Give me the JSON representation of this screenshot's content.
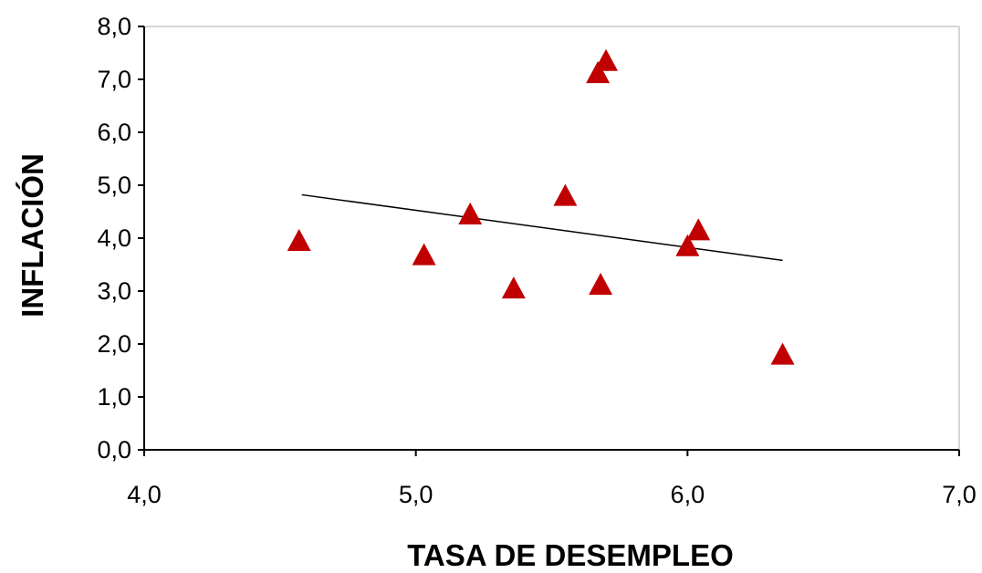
{
  "chart_data": {
    "type": "scatter",
    "title": "",
    "xlabel": "TASA DE DESEMPLEO",
    "ylabel": "INFLACIÓN",
    "xlim": [
      4.0,
      7.0
    ],
    "ylim": [
      0.0,
      8.0
    ],
    "x_ticks": [
      "4,0",
      "5,0",
      "6,0",
      "7,0"
    ],
    "y_ticks": [
      "0,0",
      "1,0",
      "2,0",
      "3,0",
      "4,0",
      "5,0",
      "6,0",
      "7,0",
      "8,0"
    ],
    "grid": false,
    "marker": "triangle",
    "marker_color": "#c00000",
    "points": [
      {
        "x": 4.57,
        "y": 3.95
      },
      {
        "x": 5.03,
        "y": 3.68
      },
      {
        "x": 5.2,
        "y": 4.45
      },
      {
        "x": 5.36,
        "y": 3.05
      },
      {
        "x": 5.55,
        "y": 4.8
      },
      {
        "x": 5.67,
        "y": 7.12
      },
      {
        "x": 5.7,
        "y": 7.35
      },
      {
        "x": 5.68,
        "y": 3.12
      },
      {
        "x": 6.0,
        "y": 3.85
      },
      {
        "x": 6.04,
        "y": 4.15
      },
      {
        "x": 6.35,
        "y": 1.8
      }
    ],
    "trendline": {
      "x": [
        4.58,
        6.35
      ],
      "y": [
        4.82,
        3.58
      ],
      "color": "#000000"
    }
  }
}
